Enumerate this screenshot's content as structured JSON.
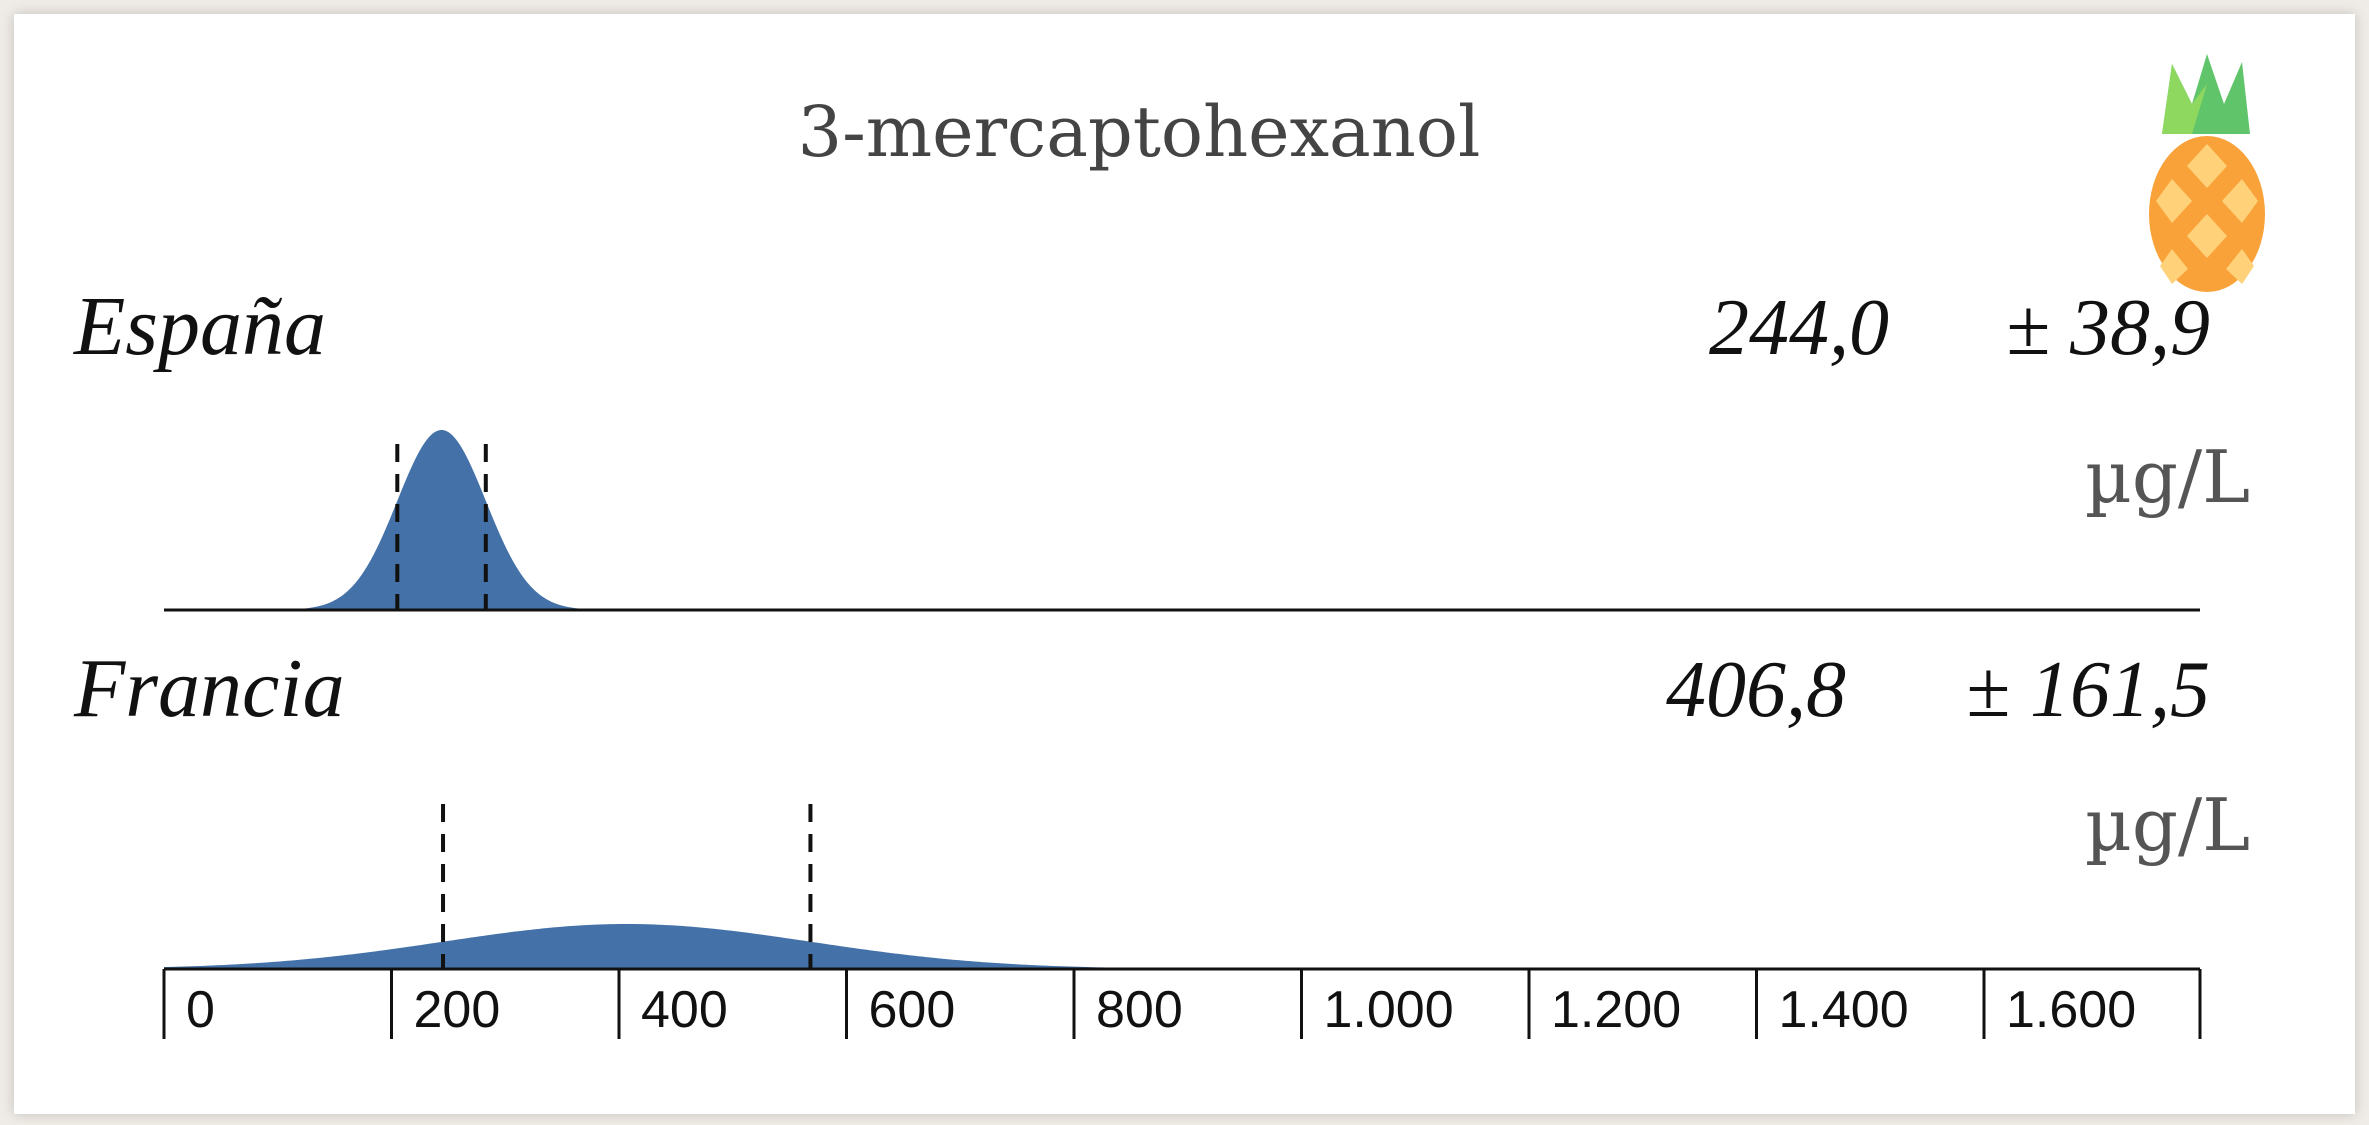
{
  "chart_data": {
    "type": "area",
    "title": "3-mercaptohexanol",
    "xlim": [
      0,
      1800
    ],
    "x_ticks": [
      {
        "value": 0,
        "label": "0"
      },
      {
        "value": 200,
        "label": "200"
      },
      {
        "value": 400,
        "label": "400"
      },
      {
        "value": 600,
        "label": "600"
      },
      {
        "value": 800,
        "label": "800"
      },
      {
        "value": 1000,
        "label": "1.000"
      },
      {
        "value": 1200,
        "label": "1.200"
      },
      {
        "value": 1400,
        "label": "1.400"
      },
      {
        "value": 1600,
        "label": "1.600"
      }
    ],
    "series": [
      {
        "name": "España",
        "mean": 244.0,
        "sd": 38.9,
        "mean_label": "244,0",
        "sd_label": "± 38,9",
        "unit": "µg/L",
        "color": "#4472a8"
      },
      {
        "name": "Francia",
        "mean": 406.8,
        "sd": 161.5,
        "mean_label": "406,8",
        "sd_label": "± 161,5",
        "unit": "µg/L",
        "color": "#4472a8"
      }
    ],
    "icon": "pineapple-icon"
  }
}
